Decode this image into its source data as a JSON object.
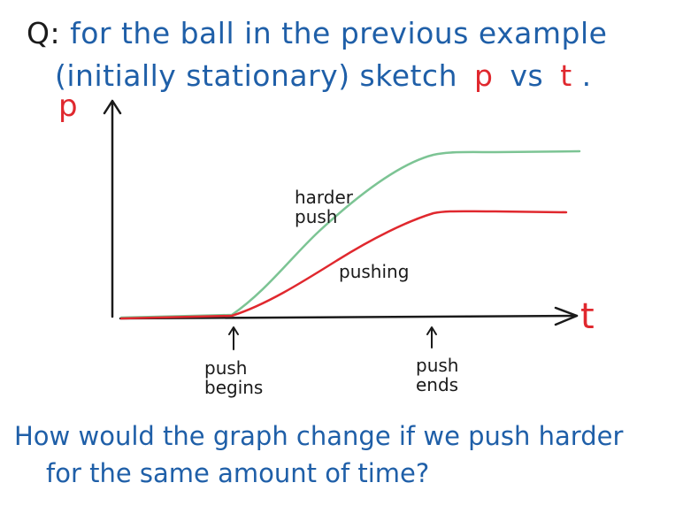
{
  "question": {
    "prefix": "Q:",
    "line1": "for the ball in the previous example",
    "line2_start": "(initially stationary) sketch",
    "line2_p": "p",
    "line2_vs": "vs",
    "line2_t": "t",
    "line2_end": "."
  },
  "axes": {
    "y_label": "p",
    "x_label": "t"
  },
  "curves": {
    "harder_label_line1": "harder",
    "harder_label_line2": "push",
    "pushing_label": "pushing"
  },
  "markers": {
    "begin_line1": "push",
    "begin_line2": "begins",
    "end_line1": "push",
    "end_line2": "ends"
  },
  "footer": {
    "line1": "How would the graph change if we push harder",
    "line2": "for the same amount of time?"
  },
  "colors": {
    "text_blue": "#1f5fa8",
    "red_curve": "#e0282e",
    "green_curve": "#7cc494",
    "axis": "#1a1a1a"
  }
}
